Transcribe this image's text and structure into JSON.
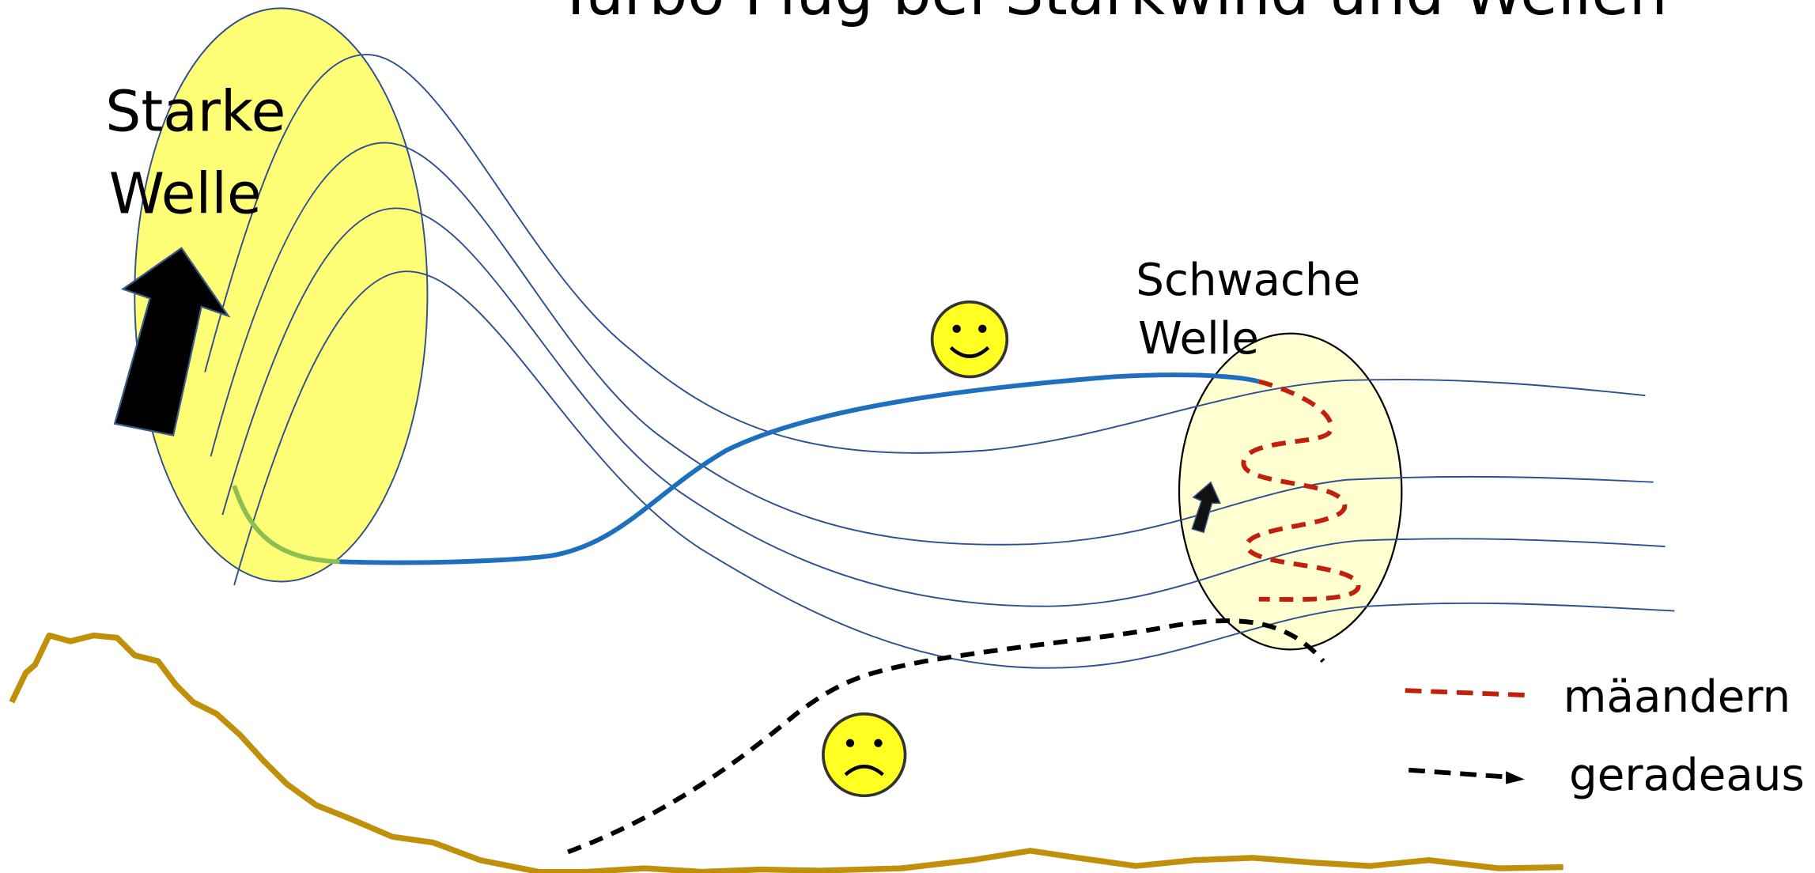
{
  "title": "Turbo Flug bei Starkwind und Wellen",
  "labels": {
    "strong_wave": [
      "Starke",
      "Welle"
    ],
    "weak_wave": [
      "Schwache",
      "Welle"
    ]
  },
  "legend": [
    "mäandern",
    "geradeaus"
  ]
}
